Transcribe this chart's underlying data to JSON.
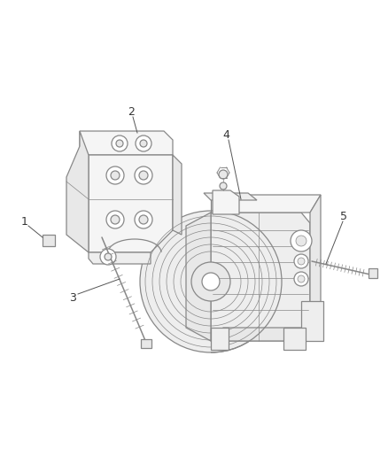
{
  "bg_color": "#ffffff",
  "line_color": "#888888",
  "label_color": "#555555",
  "figsize": [
    4.38,
    5.33
  ],
  "dpi": 100,
  "lw_main": 0.9,
  "lw_thin": 0.5,
  "lw_thick": 1.1
}
